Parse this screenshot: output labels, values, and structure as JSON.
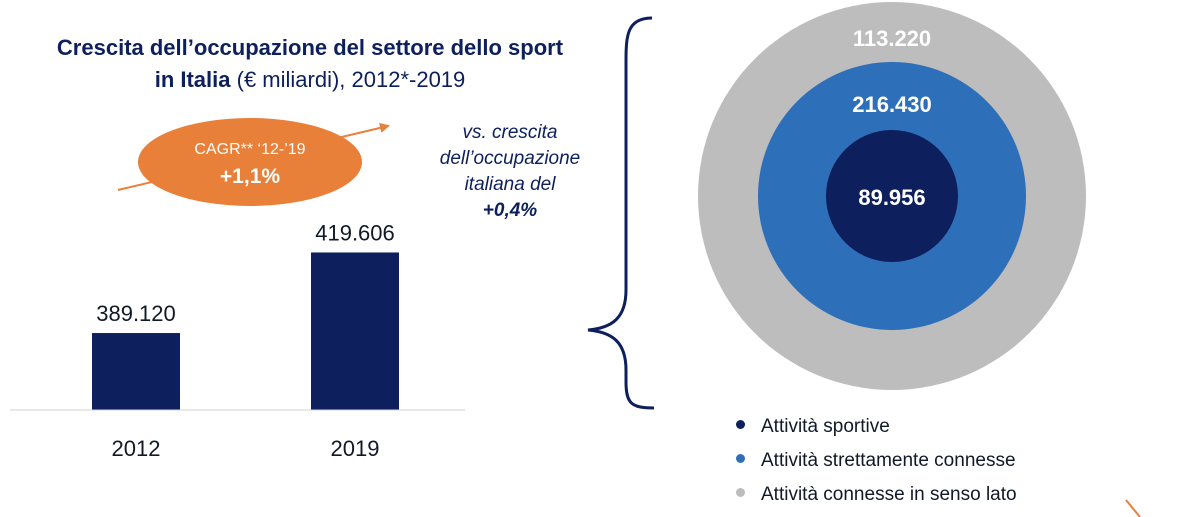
{
  "title": {
    "line1": "Crescita dell’occupazione del settore dello sport",
    "line2_bold": "in Italia",
    "line2_rest": " (€ miliardi), 2012*-2019"
  },
  "colors": {
    "navy": "#0d1f5c",
    "blue": "#2e6fba",
    "grey": "#bdbdbd",
    "orange": "#e8803a"
  },
  "cagr": {
    "label": "CAGR** ‘12-’19",
    "value": "+1,1%"
  },
  "comparison_note": {
    "text": "vs. crescita dell’occupazione italiana del",
    "value": "+0,4%"
  },
  "chart_data": [
    {
      "type": "bar",
      "title": "Crescita dell’occupazione del settore dello sport in Italia (€ miliardi), 2012*-2019",
      "categories": [
        "2012",
        "2019"
      ],
      "values": [
        389120,
        419606
      ],
      "value_labels": [
        "389.120",
        "419.606"
      ]
    },
    {
      "type": "nested-circles",
      "series": [
        {
          "name": "Attività sportive",
          "value": 89956,
          "label": "89.956",
          "color": "#0d1f5c"
        },
        {
          "name": "Attività strettamente connesse",
          "value": 216430,
          "label": "216.430",
          "color": "#2e6fba"
        },
        {
          "name": "Attività connesse in senso lato",
          "value": 113220,
          "label": "113.220",
          "color": "#bdbdbd"
        }
      ]
    }
  ]
}
